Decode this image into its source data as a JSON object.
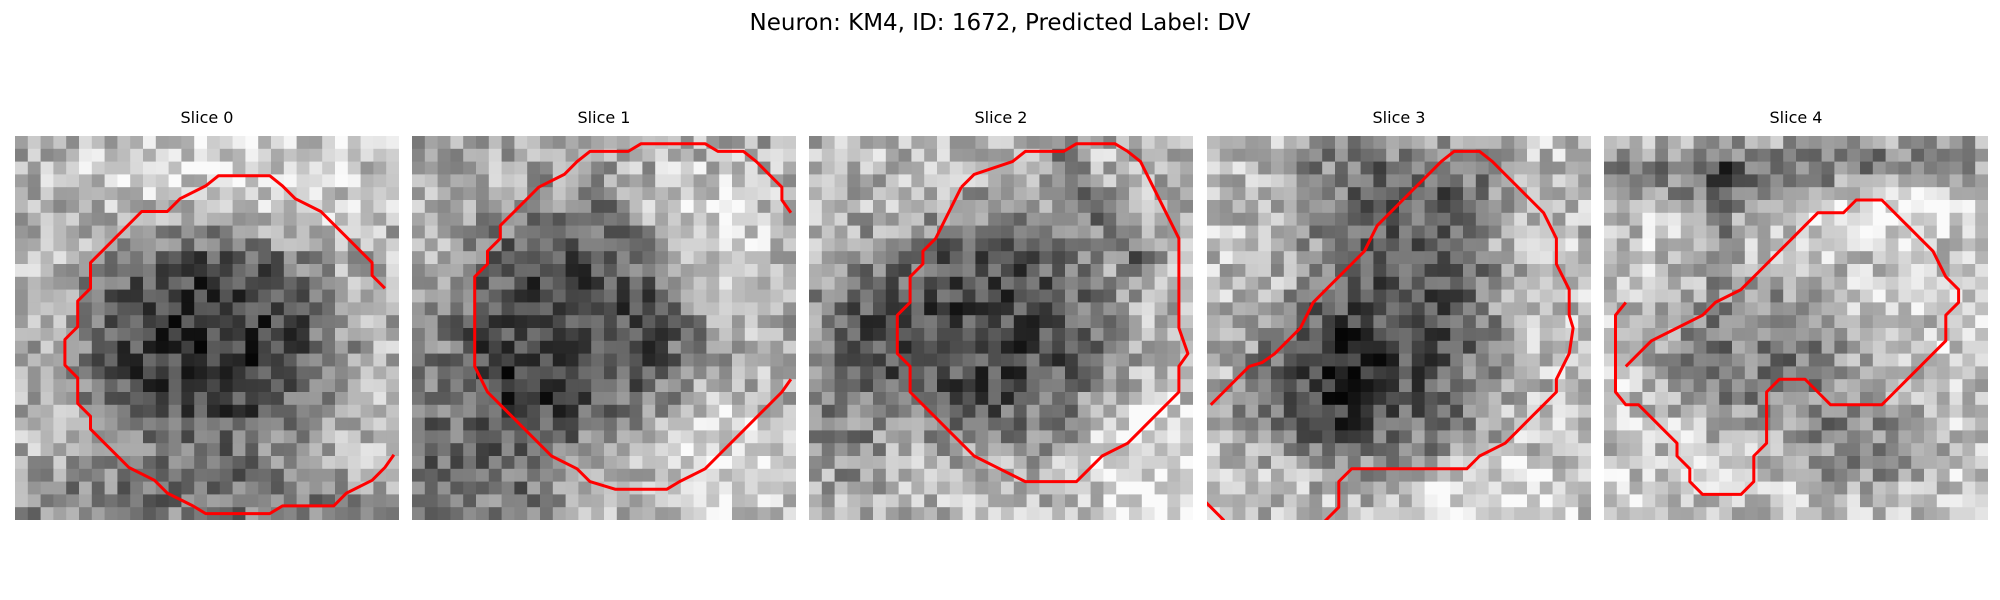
{
  "figure": {
    "title": "Neuron: KM4, ID: 1672, Predicted Label: DV"
  },
  "panels": [
    {
      "title": "Slice 0"
    },
    {
      "title": "Slice 1"
    },
    {
      "title": "Slice 2"
    },
    {
      "title": "Slice 3"
    },
    {
      "title": "Slice 4"
    }
  ],
  "colors": {
    "contour": "#ff0000",
    "background": "#ffffff"
  }
}
